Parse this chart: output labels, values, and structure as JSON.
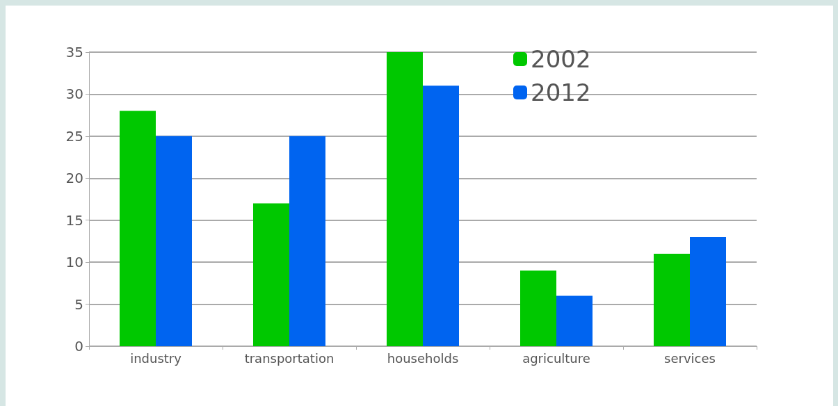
{
  "chart_data": {
    "type": "bar",
    "categories": [
      "industry",
      "transportation",
      "households",
      "agriculture",
      "services"
    ],
    "series": [
      {
        "name": "2002",
        "color": "#00c800",
        "values": [
          28,
          17,
          35,
          9,
          11
        ]
      },
      {
        "name": "2012",
        "color": "#0064f0",
        "values": [
          25,
          25,
          31,
          6,
          13
        ]
      }
    ],
    "ylim": [
      0,
      35
    ],
    "yticks": [
      0,
      5,
      10,
      15,
      20,
      25,
      30,
      35
    ],
    "grid": "y",
    "legend": "top right"
  }
}
